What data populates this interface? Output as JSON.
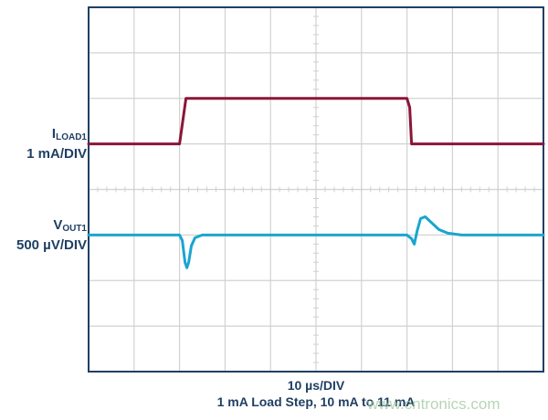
{
  "chart_data": {
    "type": "line",
    "xlabel": "10 µs/DIV",
    "caption": "1 mA Load Step, 10 mA to 11 mA",
    "x_units": "µs",
    "xlim": [
      0,
      100
    ],
    "divisions": {
      "x": 10,
      "y": 8
    },
    "grid": true,
    "series": [
      {
        "name": "ILOAD1",
        "label_main": "I",
        "label_sub": "LOAD1",
        "scale_label": "1 mA/DIV",
        "units": "mA",
        "per_div": 1,
        "color": "#8b1538",
        "x": [
          0,
          20,
          21.4,
          70,
          70.6,
          71.0,
          100
        ],
        "y": [
          10,
          10,
          11,
          11,
          10.8,
          10,
          10
        ]
      },
      {
        "name": "VOUT1",
        "label_main": "V",
        "label_sub": "OUT1",
        "scale_label": "500 µV/DIV",
        "units": "µV",
        "per_div": 500,
        "color": "#1aa5cf",
        "x": [
          0,
          20,
          20.6,
          21.2,
          21.6,
          22.0,
          22.6,
          23.4,
          25,
          27,
          70,
          71,
          71.6,
          72.2,
          73,
          74,
          75.5,
          77,
          79,
          82,
          100
        ],
        "y": [
          0,
          0,
          -60,
          -300,
          -360,
          -300,
          -120,
          -30,
          0,
          0,
          0,
          -40,
          -100,
          40,
          180,
          200,
          130,
          60,
          20,
          0,
          0
        ]
      }
    ]
  },
  "watermark": "www.cntronics.com"
}
